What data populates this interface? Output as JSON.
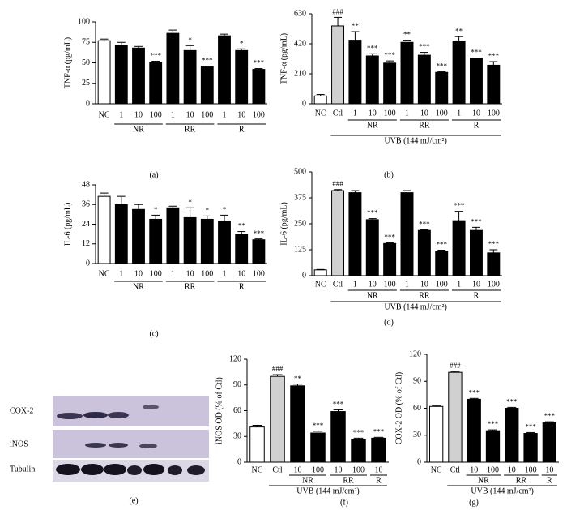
{
  "chart_data": [
    {
      "type": "bar",
      "panel": "(a)",
      "ylabel": "TNF-α (pg/mL)",
      "ylim": [
        0,
        100
      ],
      "yticks": [
        0,
        25,
        50,
        75,
        100
      ],
      "categories": [
        "NC",
        "1",
        "10",
        "100",
        "1",
        "10",
        "100",
        "1",
        "10",
        "100"
      ],
      "values": [
        77,
        71,
        68,
        51,
        86,
        65,
        45,
        83,
        65,
        42
      ],
      "errors": [
        2,
        4,
        2,
        1,
        4,
        6,
        1,
        2,
        2,
        1
      ],
      "annotations": [
        null,
        null,
        null,
        "***",
        null,
        "*",
        "***",
        null,
        "*",
        "***"
      ],
      "colors": [
        "#ffffff",
        "#000000",
        "#000000",
        "#000000",
        "#000000",
        "#000000",
        "#000000",
        "#000000",
        "#000000",
        "#000000"
      ],
      "groups": [
        {
          "name": "NR",
          "start": 1,
          "end": 3
        },
        {
          "name": "RR",
          "start": 4,
          "end": 6
        },
        {
          "name": "R",
          "start": 7,
          "end": 9
        }
      ]
    },
    {
      "type": "bar",
      "panel": "(b)",
      "ylabel": "TNF-α (pg/mL)",
      "ylim": [
        0,
        630
      ],
      "yticks": [
        0,
        210,
        420,
        630
      ],
      "categories": [
        "NC",
        "Ctl",
        "1",
        "10",
        "100",
        "1",
        "10",
        "100",
        "1",
        "10",
        "100"
      ],
      "values": [
        55,
        545,
        445,
        335,
        285,
        430,
        340,
        220,
        440,
        315,
        270
      ],
      "errors": [
        10,
        60,
        60,
        15,
        15,
        15,
        20,
        5,
        30,
        5,
        25
      ],
      "annotations": [
        null,
        "###",
        "**",
        "***",
        "***",
        "**",
        "***",
        "***",
        "**",
        "***",
        "***"
      ],
      "colors": [
        "#ffffff",
        "#d0d0d0",
        "#000000",
        "#000000",
        "#000000",
        "#000000",
        "#000000",
        "#000000",
        "#000000",
        "#000000",
        "#000000"
      ],
      "groups": [
        {
          "name": "NR",
          "start": 2,
          "end": 4
        },
        {
          "name": "RR",
          "start": 5,
          "end": 7
        },
        {
          "name": "R",
          "start": 8,
          "end": 10
        }
      ],
      "xlabel": "UVB (144 mJ/cm²)"
    },
    {
      "type": "bar",
      "panel": "(c)",
      "ylabel": "IL-6 (pg/mL)",
      "ylim": [
        0,
        48
      ],
      "yticks": [
        0,
        12,
        24,
        36,
        48
      ],
      "categories": [
        "NC",
        "1",
        "10",
        "100",
        "1",
        "10",
        "100",
        "1",
        "10",
        "100"
      ],
      "values": [
        41,
        36,
        33,
        27,
        34,
        28,
        27,
        26,
        18,
        14.5
      ],
      "errors": [
        2,
        5,
        3,
        2.5,
        1,
        6,
        2,
        3.5,
        1.5,
        0.5
      ],
      "annotations": [
        null,
        null,
        null,
        "*",
        null,
        "*",
        "*",
        "*",
        "**",
        "***"
      ],
      "colors": [
        "#ffffff",
        "#000000",
        "#000000",
        "#000000",
        "#000000",
        "#000000",
        "#000000",
        "#000000",
        "#000000",
        "#000000"
      ],
      "groups": [
        {
          "name": "NR",
          "start": 1,
          "end": 3
        },
        {
          "name": "RR",
          "start": 4,
          "end": 6
        },
        {
          "name": "R",
          "start": 7,
          "end": 9
        }
      ]
    },
    {
      "type": "bar",
      "panel": "(d)",
      "ylabel": "IL-6 (pg/mL)",
      "ylim": [
        0,
        500
      ],
      "yticks": [
        0,
        125,
        250,
        375,
        500
      ],
      "categories": [
        "NC",
        "Ctl",
        "1",
        "10",
        "100",
        "1",
        "10",
        "100",
        "1",
        "10",
        "100"
      ],
      "values": [
        28,
        410,
        400,
        270,
        155,
        400,
        218,
        118,
        265,
        218,
        110
      ],
      "errors": [
        2,
        5,
        10,
        5,
        3,
        10,
        3,
        5,
        45,
        15,
        15
      ],
      "annotations": [
        null,
        "###",
        null,
        "***",
        "***",
        null,
        "***",
        "***",
        "***",
        "***",
        "***"
      ],
      "colors": [
        "#ffffff",
        "#d0d0d0",
        "#000000",
        "#000000",
        "#000000",
        "#000000",
        "#000000",
        "#000000",
        "#000000",
        "#000000",
        "#000000"
      ],
      "groups": [
        {
          "name": "NR",
          "start": 2,
          "end": 4
        },
        {
          "name": "RR",
          "start": 5,
          "end": 7
        },
        {
          "name": "R",
          "start": 8,
          "end": 10
        }
      ],
      "xlabel": "UVB (144 mJ/cm²)"
    },
    {
      "type": "bar",
      "panel": "(f)",
      "ylabel": "iNOS OD (% of Ctl)",
      "ylim": [
        0,
        120
      ],
      "yticks": [
        0,
        30,
        60,
        90,
        120
      ],
      "categories": [
        "NC",
        "Ctl",
        "10",
        "100",
        "10",
        "100",
        "10"
      ],
      "values": [
        41,
        100,
        89,
        34,
        59,
        26,
        28
      ],
      "errors": [
        2,
        2,
        2,
        2,
        2,
        2,
        1
      ],
      "annotations": [
        null,
        "###",
        "**",
        "***",
        "***",
        "***",
        "***"
      ],
      "colors": [
        "#ffffff",
        "#d0d0d0",
        "#000000",
        "#000000",
        "#000000",
        "#000000",
        "#000000"
      ],
      "groups": [
        {
          "name": "NR",
          "start": 2,
          "end": 3
        },
        {
          "name": "RR",
          "start": 4,
          "end": 5
        },
        {
          "name": "R",
          "start": 6,
          "end": 6
        }
      ],
      "xlabel": "UVB (144 mJ/cm²)"
    },
    {
      "type": "bar",
      "panel": "(g)",
      "ylabel": "COX-2 OD (% of Ctl)",
      "ylim": [
        0,
        120
      ],
      "yticks": [
        0,
        30,
        60,
        90,
        120
      ],
      "categories": [
        "NC",
        "Ctl",
        "10",
        "100",
        "10",
        "100",
        "10"
      ],
      "values": [
        62,
        100,
        70,
        35,
        60,
        32,
        44
      ],
      "errors": [
        1,
        1,
        1,
        1,
        1,
        1,
        1
      ],
      "annotations": [
        null,
        "###",
        "***",
        "***",
        "***",
        "***",
        "***"
      ],
      "colors": [
        "#ffffff",
        "#d0d0d0",
        "#000000",
        "#000000",
        "#000000",
        "#000000",
        "#000000"
      ],
      "groups": [
        {
          "name": "NR",
          "start": 2,
          "end": 3
        },
        {
          "name": "RR",
          "start": 4,
          "end": 5
        },
        {
          "name": "R",
          "start": 6,
          "end": 6
        }
      ],
      "xlabel": "UVB (144 mJ/cm²)"
    }
  ],
  "blot": {
    "panel": "(e)",
    "labels": [
      "COX-2",
      "iNOS",
      "Tubulin"
    ]
  }
}
